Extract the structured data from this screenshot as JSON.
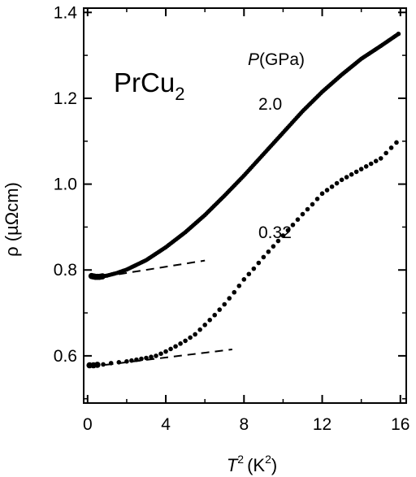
{
  "chart_data": {
    "type": "scatter",
    "title": "",
    "xlabel": {
      "symbol": "T",
      "sup": "2",
      "unit": "(K",
      "unit_sup": "2",
      "unit_close": ")"
    },
    "ylabel": "ρ (µΩcm)",
    "xlim": [
      -0.2,
      16.3
    ],
    "ylim": [
      0.49,
      1.41
    ],
    "x_ticks": [
      0,
      4,
      8,
      12,
      16
    ],
    "y_ticks": [
      0.6,
      0.8,
      1.0,
      1.2,
      1.4
    ],
    "x_tick_labels": [
      "0",
      "4",
      "8",
      "12",
      "16"
    ],
    "y_tick_labels": [
      "0.6",
      "0.8",
      "1.0",
      "1.2",
      "1.4"
    ],
    "grid": false,
    "annotations": {
      "compound": {
        "base": "PrCu",
        "sub": "2"
      },
      "pressure_header": {
        "symbol": "P",
        "unit": "(GPa)"
      }
    },
    "series": [
      {
        "name": "2.0",
        "style": "dense-dots",
        "points": [
          [
            0.2,
            0.786
          ],
          [
            0.4,
            0.784
          ],
          [
            0.6,
            0.784
          ],
          [
            1.0,
            0.787
          ],
          [
            1.5,
            0.793
          ],
          [
            2.0,
            0.801
          ],
          [
            3.0,
            0.823
          ],
          [
            4.0,
            0.853
          ],
          [
            5.0,
            0.888
          ],
          [
            6.0,
            0.928
          ],
          [
            7.0,
            0.973
          ],
          [
            8.0,
            1.02
          ],
          [
            9.0,
            1.07
          ],
          [
            10.0,
            1.12
          ],
          [
            11.0,
            1.17
          ],
          [
            12.0,
            1.215
          ],
          [
            13.0,
            1.255
          ],
          [
            14.0,
            1.292
          ],
          [
            15.0,
            1.322
          ],
          [
            15.9,
            1.35
          ]
        ],
        "fit": {
          "x": [
            0.2,
            6.0
          ],
          "y": [
            0.78,
            0.822
          ]
        }
      },
      {
        "name": "0.32",
        "style": "sparse-dots",
        "points": [
          [
            0.1,
            0.578
          ],
          [
            0.3,
            0.578
          ],
          [
            0.5,
            0.579
          ],
          [
            0.8,
            0.58
          ],
          [
            1.2,
            0.583
          ],
          [
            1.6,
            0.585
          ],
          [
            2.0,
            0.587
          ],
          [
            2.5,
            0.591
          ],
          [
            3.0,
            0.595
          ],
          [
            3.5,
            0.6
          ],
          [
            4.0,
            0.61
          ],
          [
            4.5,
            0.622
          ],
          [
            5.0,
            0.635
          ],
          [
            5.5,
            0.65
          ],
          [
            6.0,
            0.672
          ],
          [
            6.5,
            0.695
          ],
          [
            7.0,
            0.72
          ],
          [
            7.5,
            0.748
          ],
          [
            8.0,
            0.778
          ],
          [
            8.5,
            0.803
          ],
          [
            9.0,
            0.83
          ],
          [
            9.5,
            0.855
          ],
          [
            10.0,
            0.88
          ],
          [
            10.5,
            0.905
          ],
          [
            11.0,
            0.93
          ],
          [
            11.5,
            0.953
          ],
          [
            12.0,
            0.978
          ],
          [
            13.0,
            1.01
          ],
          [
            14.0,
            1.035
          ],
          [
            15.0,
            1.06
          ],
          [
            15.8,
            1.097
          ]
        ],
        "fit": {
          "x": [
            0.2,
            7.4
          ],
          "y": [
            0.575,
            0.615
          ]
        }
      }
    ]
  }
}
